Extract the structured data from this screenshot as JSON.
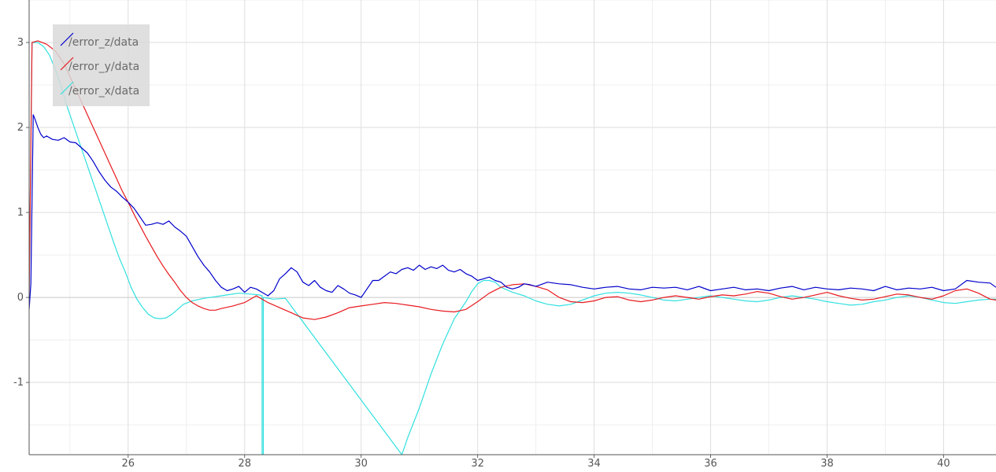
{
  "chart_data": {
    "type": "line",
    "title": "",
    "xlabel": "",
    "ylabel": "",
    "xlim": [
      24.3,
      40.9
    ],
    "ylim": [
      -1.85,
      3.5
    ],
    "xticks": [
      26,
      28,
      30,
      32,
      34,
      36,
      38,
      40
    ],
    "yticks": [
      -1,
      0,
      1,
      2,
      3
    ],
    "grid": true,
    "legend_position": "top-left",
    "series": [
      {
        "name": "/error_z/data",
        "color": "#0000cc",
        "x": [
          24.3,
          24.33,
          24.37,
          24.4,
          24.45,
          24.5,
          24.55,
          24.6,
          24.7,
          24.8,
          24.9,
          25.0,
          25.1,
          25.2,
          25.3,
          25.4,
          25.5,
          25.6,
          25.7,
          25.8,
          25.9,
          26.0,
          26.1,
          26.2,
          26.3,
          26.4,
          26.5,
          26.6,
          26.7,
          26.8,
          26.9,
          27.0,
          27.1,
          27.2,
          27.3,
          27.4,
          27.5,
          27.6,
          27.7,
          27.8,
          27.9,
          28.0,
          28.1,
          28.2,
          28.3,
          28.4,
          28.5,
          28.6,
          28.7,
          28.8,
          28.9,
          29.0,
          29.1,
          29.2,
          29.3,
          29.4,
          29.5,
          29.6,
          29.7,
          29.8,
          29.9,
          30.0,
          30.1,
          30.2,
          30.3,
          30.4,
          30.5,
          30.6,
          30.7,
          30.8,
          30.9,
          31.0,
          31.1,
          31.2,
          31.3,
          31.4,
          31.5,
          31.6,
          31.7,
          31.8,
          31.9,
          32.0,
          32.1,
          32.2,
          32.3,
          32.4,
          32.5,
          32.6,
          32.7,
          32.8,
          32.9,
          33.0,
          33.2,
          33.4,
          33.6,
          33.8,
          34.0,
          34.2,
          34.4,
          34.6,
          34.8,
          35.0,
          35.2,
          35.4,
          35.6,
          35.8,
          36.0,
          36.2,
          36.4,
          36.6,
          36.8,
          37.0,
          37.2,
          37.4,
          37.6,
          37.8,
          38.0,
          38.2,
          38.4,
          38.6,
          38.8,
          39.0,
          39.2,
          39.4,
          39.6,
          39.8,
          40.0,
          40.2,
          40.4,
          40.6,
          40.8,
          40.9
        ],
        "y": [
          -0.14,
          0.16,
          2.15,
          2.1,
          2.0,
          1.92,
          1.88,
          1.9,
          1.86,
          1.85,
          1.88,
          1.83,
          1.82,
          1.76,
          1.7,
          1.6,
          1.48,
          1.38,
          1.3,
          1.25,
          1.18,
          1.12,
          1.05,
          0.95,
          0.85,
          0.86,
          0.88,
          0.86,
          0.9,
          0.83,
          0.78,
          0.72,
          0.6,
          0.48,
          0.38,
          0.3,
          0.2,
          0.12,
          0.08,
          0.1,
          0.13,
          0.06,
          0.12,
          0.1,
          0.06,
          0.02,
          0.08,
          0.22,
          0.28,
          0.35,
          0.3,
          0.18,
          0.14,
          0.2,
          0.12,
          0.08,
          0.06,
          0.14,
          0.1,
          0.05,
          0.03,
          0.0,
          0.1,
          0.2,
          0.2,
          0.25,
          0.3,
          0.28,
          0.33,
          0.35,
          0.32,
          0.38,
          0.33,
          0.36,
          0.34,
          0.38,
          0.32,
          0.3,
          0.33,
          0.28,
          0.25,
          0.2,
          0.22,
          0.24,
          0.2,
          0.18,
          0.12,
          0.1,
          0.12,
          0.16,
          0.15,
          0.13,
          0.18,
          0.16,
          0.15,
          0.12,
          0.1,
          0.12,
          0.13,
          0.1,
          0.09,
          0.12,
          0.11,
          0.12,
          0.09,
          0.13,
          0.08,
          0.1,
          0.12,
          0.09,
          0.1,
          0.08,
          0.11,
          0.13,
          0.09,
          0.12,
          0.1,
          0.09,
          0.11,
          0.1,
          0.08,
          0.13,
          0.09,
          0.11,
          0.1,
          0.12,
          0.08,
          0.1,
          0.2,
          0.18,
          0.17,
          0.12
        ]
      },
      {
        "name": "/error_y/data",
        "color": "#e8191e",
        "x": [
          24.3,
          24.35,
          24.45,
          24.6,
          24.75,
          24.9,
          25.0,
          25.1,
          25.2,
          25.3,
          25.4,
          25.5,
          25.6,
          25.7,
          25.8,
          25.9,
          26.0,
          26.1,
          26.2,
          26.3,
          26.4,
          26.5,
          26.6,
          26.7,
          26.8,
          26.9,
          27.0,
          27.1,
          27.2,
          27.3,
          27.4,
          27.5,
          27.6,
          27.8,
          28.0,
          28.2,
          28.4,
          28.6,
          28.8,
          29.0,
          29.2,
          29.4,
          29.6,
          29.8,
          30.0,
          30.2,
          30.4,
          30.6,
          30.8,
          31.0,
          31.2,
          31.4,
          31.6,
          31.8,
          32.0,
          32.2,
          32.4,
          32.6,
          32.8,
          33.0,
          33.2,
          33.4,
          33.6,
          33.8,
          34.0,
          34.2,
          34.4,
          34.6,
          34.8,
          35.0,
          35.2,
          35.4,
          35.6,
          35.8,
          36.0,
          36.2,
          36.4,
          36.6,
          36.8,
          37.0,
          37.2,
          37.4,
          37.6,
          37.8,
          38.0,
          38.2,
          38.4,
          38.6,
          38.8,
          39.0,
          39.2,
          39.4,
          39.6,
          39.8,
          40.0,
          40.2,
          40.4,
          40.6,
          40.8,
          40.9
        ],
        "y": [
          0.0,
          3.0,
          3.02,
          2.98,
          2.9,
          2.75,
          2.6,
          2.45,
          2.3,
          2.15,
          2.0,
          1.85,
          1.7,
          1.55,
          1.4,
          1.25,
          1.12,
          0.98,
          0.85,
          0.72,
          0.6,
          0.48,
          0.37,
          0.27,
          0.18,
          0.08,
          0.0,
          -0.06,
          -0.1,
          -0.13,
          -0.15,
          -0.15,
          -0.13,
          -0.1,
          -0.06,
          0.02,
          -0.06,
          -0.12,
          -0.18,
          -0.24,
          -0.26,
          -0.23,
          -0.18,
          -0.12,
          -0.1,
          -0.08,
          -0.06,
          -0.07,
          -0.09,
          -0.11,
          -0.14,
          -0.16,
          -0.17,
          -0.14,
          -0.05,
          0.05,
          0.12,
          0.15,
          0.16,
          0.13,
          0.09,
          0.0,
          -0.05,
          -0.06,
          -0.04,
          0.0,
          0.01,
          -0.03,
          -0.05,
          -0.03,
          0.0,
          0.02,
          0.0,
          -0.02,
          0.01,
          0.03,
          0.02,
          0.04,
          0.07,
          0.05,
          0.01,
          -0.02,
          0.0,
          0.03,
          0.06,
          0.02,
          -0.01,
          -0.03,
          -0.02,
          0.01,
          0.04,
          0.03,
          0.0,
          -0.02,
          0.02,
          0.08,
          0.1,
          0.05,
          -0.02,
          -0.03
        ]
      },
      {
        "name": "/error_x/data",
        "color": "#33e0e0",
        "x": [
          24.3,
          24.35,
          24.45,
          24.55,
          24.65,
          24.75,
          24.85,
          24.95,
          25.05,
          25.15,
          25.25,
          25.35,
          25.45,
          25.55,
          25.65,
          25.75,
          25.85,
          25.95,
          26.05,
          26.15,
          26.25,
          26.35,
          26.45,
          26.55,
          26.65,
          26.75,
          26.85,
          26.95,
          27.1,
          27.3,
          27.5,
          27.7,
          27.9,
          28.1,
          28.25,
          28.3,
          28.3,
          28.32,
          28.32,
          28.5,
          28.7,
          30.7,
          30.8,
          31.0,
          31.2,
          31.4,
          31.6,
          31.8,
          31.9,
          32.0,
          32.1,
          32.2,
          32.3,
          32.4,
          32.6,
          32.8,
          33.0,
          33.2,
          33.4,
          33.6,
          33.8,
          34.0,
          34.2,
          34.4,
          34.6,
          34.8,
          35.0,
          35.2,
          35.4,
          35.6,
          35.8,
          36.0,
          36.2,
          36.4,
          36.6,
          36.8,
          37.0,
          37.2,
          37.4,
          37.6,
          37.8,
          38.0,
          38.2,
          38.4,
          38.6,
          38.8,
          39.0,
          39.2,
          39.4,
          39.6,
          39.8,
          40.0,
          40.2,
          40.4,
          40.6,
          40.8,
          40.9
        ],
        "y": [
          0.0,
          3.0,
          3.0,
          2.95,
          2.85,
          2.68,
          2.48,
          2.25,
          2.05,
          1.85,
          1.65,
          1.45,
          1.25,
          1.05,
          0.85,
          0.65,
          0.46,
          0.3,
          0.12,
          -0.02,
          -0.12,
          -0.2,
          -0.24,
          -0.25,
          -0.24,
          -0.2,
          -0.14,
          -0.08,
          -0.04,
          -0.01,
          0.01,
          0.03,
          0.05,
          0.04,
          0.03,
          0.02,
          -1.85,
          -1.85,
          0.0,
          -0.02,
          -0.01,
          -1.85,
          -1.65,
          -1.3,
          -0.9,
          -0.55,
          -0.25,
          -0.05,
          0.07,
          0.16,
          0.2,
          0.2,
          0.18,
          0.12,
          0.06,
          0.02,
          -0.04,
          -0.08,
          -0.1,
          -0.08,
          -0.03,
          0.02,
          0.05,
          0.06,
          0.05,
          0.03,
          0.0,
          -0.03,
          -0.04,
          -0.02,
          0.0,
          0.02,
          0.0,
          -0.02,
          -0.04,
          -0.05,
          -0.03,
          0.0,
          0.02,
          0.0,
          -0.02,
          -0.05,
          -0.07,
          -0.09,
          -0.08,
          -0.05,
          -0.03,
          0.0,
          0.02,
          0.0,
          -0.03,
          -0.06,
          -0.07,
          -0.05,
          -0.03,
          -0.02,
          -0.02
        ]
      }
    ]
  }
}
